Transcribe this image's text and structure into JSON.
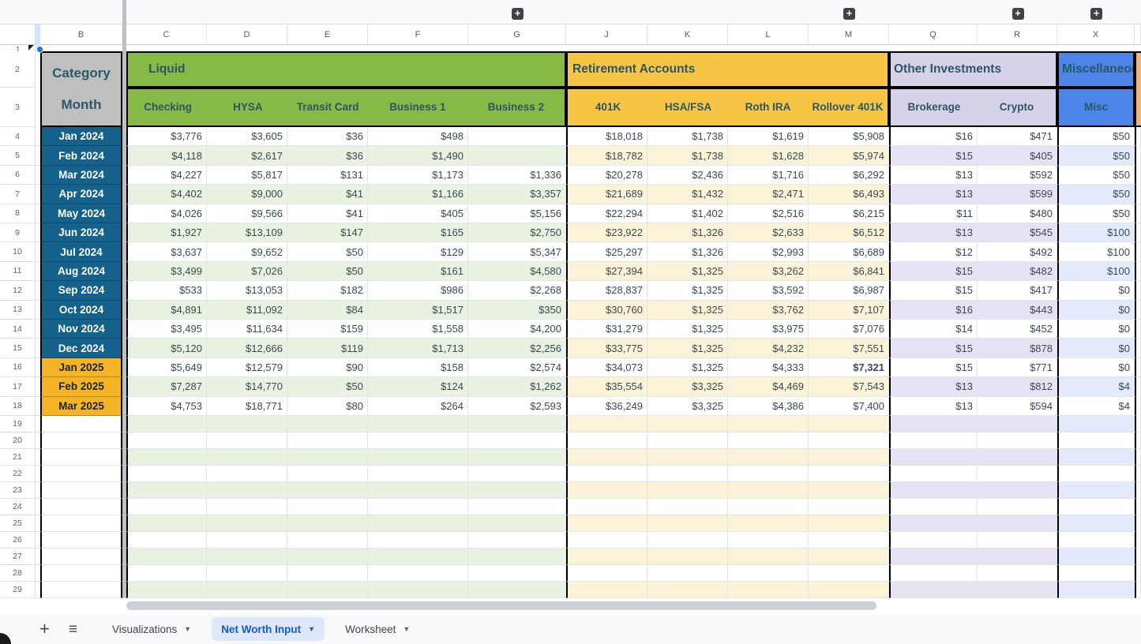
{
  "columns_strip": {
    "letters": [
      "B",
      "C",
      "D",
      "E",
      "F",
      "G",
      "J",
      "K",
      "L",
      "M",
      "Q",
      "R",
      "X"
    ],
    "plus_over": [
      "G",
      "M",
      "R",
      "X"
    ]
  },
  "grid": {
    "row1_number": "1",
    "header_row_numbers": [
      "2",
      "3"
    ],
    "corner": {
      "top": "Category",
      "bottom": "Month"
    },
    "sections": [
      {
        "id": "liquid",
        "label": "Liquid",
        "columns": [
          "Checking",
          "HYSA",
          "Transit Card",
          "Business 1",
          "Business 2"
        ]
      },
      {
        "id": "retirement",
        "label": "Retirement Accounts",
        "columns": [
          "401K",
          "HSA/FSA",
          "Roth IRA",
          "Rollover 401K"
        ]
      },
      {
        "id": "other",
        "label": "Other Investments",
        "columns": [
          "Brokerage",
          "Crypto"
        ]
      },
      {
        "id": "misc",
        "label": "Miscellaneous",
        "columns": [
          "Misc"
        ]
      }
    ],
    "data_rows": [
      {
        "n": "4",
        "month": "Jan 2024",
        "era": "2024",
        "cells": [
          "$3,776",
          "$3,605",
          "$36",
          "$498",
          "",
          "$18,018",
          "$1,738",
          "$1,619",
          "$5,908",
          "$16",
          "$471",
          "$50"
        ]
      },
      {
        "n": "5",
        "month": "Feb 2024",
        "era": "2024",
        "cells": [
          "$4,118",
          "$2,617",
          "$36",
          "$1,490",
          "",
          "$18,782",
          "$1,738",
          "$1,628",
          "$5,974",
          "$15",
          "$405",
          "$50"
        ]
      },
      {
        "n": "6",
        "month": "Mar 2024",
        "era": "2024",
        "cells": [
          "$4,227",
          "$5,817",
          "$131",
          "$1,173",
          "$1,336",
          "$20,278",
          "$2,436",
          "$1,716",
          "$6,292",
          "$13",
          "$592",
          "$50"
        ]
      },
      {
        "n": "7",
        "month": "Apr 2024",
        "era": "2024",
        "cells": [
          "$4,402",
          "$9,000",
          "$41",
          "$1,166",
          "$3,357",
          "$21,689",
          "$1,432",
          "$2,471",
          "$6,493",
          "$13",
          "$599",
          "$50"
        ]
      },
      {
        "n": "8",
        "month": "May 2024",
        "era": "2024",
        "cells": [
          "$4,026",
          "$9,566",
          "$41",
          "$405",
          "$5,156",
          "$22,294",
          "$1,402",
          "$2,516",
          "$6,215",
          "$11",
          "$480",
          "$50"
        ]
      },
      {
        "n": "9",
        "month": "Jun 2024",
        "era": "2024",
        "cells": [
          "$1,927",
          "$13,109",
          "$147",
          "$165",
          "$2,750",
          "$23,922",
          "$1,326",
          "$2,633",
          "$6,512",
          "$13",
          "$545",
          "$100"
        ]
      },
      {
        "n": "10",
        "month": "Jul 2024",
        "era": "2024",
        "cells": [
          "$3,637",
          "$9,652",
          "$50",
          "$129",
          "$5,347",
          "$25,297",
          "$1,326",
          "$2,993",
          "$6,689",
          "$12",
          "$492",
          "$100"
        ]
      },
      {
        "n": "11",
        "month": "Aug 2024",
        "era": "2024",
        "cells": [
          "$3,499",
          "$7,026",
          "$50",
          "$161",
          "$4,580",
          "$27,394",
          "$1,325",
          "$3,262",
          "$6,841",
          "$15",
          "$482",
          "$100"
        ]
      },
      {
        "n": "12",
        "month": "Sep 2024",
        "era": "2024",
        "cells": [
          "$533",
          "$13,053",
          "$182",
          "$986",
          "$2,268",
          "$28,837",
          "$1,325",
          "$3,592",
          "$6,987",
          "$15",
          "$417",
          "$0"
        ]
      },
      {
        "n": "13",
        "month": "Oct 2024",
        "era": "2024",
        "cells": [
          "$4,891",
          "$11,092",
          "$84",
          "$1,517",
          "$350",
          "$30,760",
          "$1,325",
          "$3,762",
          "$7,107",
          "$16",
          "$443",
          "$0"
        ]
      },
      {
        "n": "14",
        "month": "Nov 2024",
        "era": "2024",
        "cells": [
          "$3,495",
          "$11,634",
          "$159",
          "$1,558",
          "$4,200",
          "$31,279",
          "$1,325",
          "$3,975",
          "$7,076",
          "$14",
          "$452",
          "$0"
        ]
      },
      {
        "n": "15",
        "month": "Dec 2024",
        "era": "2024",
        "cells": [
          "$5,120",
          "$12,666",
          "$119",
          "$1,713",
          "$2,256",
          "$33,775",
          "$1,325",
          "$4,232",
          "$7,551",
          "$15",
          "$878",
          "$0"
        ]
      },
      {
        "n": "16",
        "month": "Jan 2025",
        "era": "2025",
        "cells": [
          "$5,649",
          "$12,579",
          "$90",
          "$158",
          "$2,574",
          "$34,073",
          "$1,325",
          "$4,333",
          "$7,321",
          "$15",
          "$771",
          "$0"
        ]
      },
      {
        "n": "17",
        "month": "Feb 2025",
        "era": "2025",
        "cells": [
          "$7,287",
          "$14,770",
          "$50",
          "$124",
          "$1,262",
          "$35,554",
          "$3,325",
          "$4,469",
          "$7,543",
          "$13",
          "$812",
          "$4"
        ]
      },
      {
        "n": "18",
        "month": "Mar 2025",
        "era": "2025",
        "cells": [
          "$4,753",
          "$18,771",
          "$80",
          "$264",
          "$2,593",
          "$36,249",
          "$3,325",
          "$4,386",
          "$7,400",
          "$13",
          "$594",
          "$4"
        ]
      }
    ],
    "bold_cell": {
      "row": "16",
      "cell_index": 8
    },
    "empty_rows": [
      "19",
      "20",
      "21",
      "22",
      "23",
      "24",
      "25",
      "26",
      "27",
      "28",
      "29"
    ]
  },
  "tabs_bar": {
    "add_label": "+",
    "all_sheets_glyph": "≡",
    "tabs": [
      {
        "label": "Visualizations",
        "active": false
      },
      {
        "label": "Net Worth Input",
        "active": true
      },
      {
        "label": "Worksheet",
        "active": false
      }
    ]
  },
  "colors": {
    "section_green": "#86B945",
    "green_tint": "#E9F1E0",
    "section_gold": "#F5C543",
    "gold_tint": "#FBF3D8",
    "section_purple": "#D8D2E8",
    "purple_tint": "#E7E2F3",
    "section_blue": "#4C86E8",
    "blue_tint": "#E2EAFB",
    "month_2024_bg": "#14618C",
    "month_2025_bg": "#F4B425",
    "corner_bg": "#BFBFBF",
    "header_text": "#2B5668",
    "next_section_sliver": "#F1B66F",
    "active_tab_text": "#1558D6",
    "active_tab_bg": "#DFE8FB",
    "selection_blue": "#1A73E8"
  }
}
